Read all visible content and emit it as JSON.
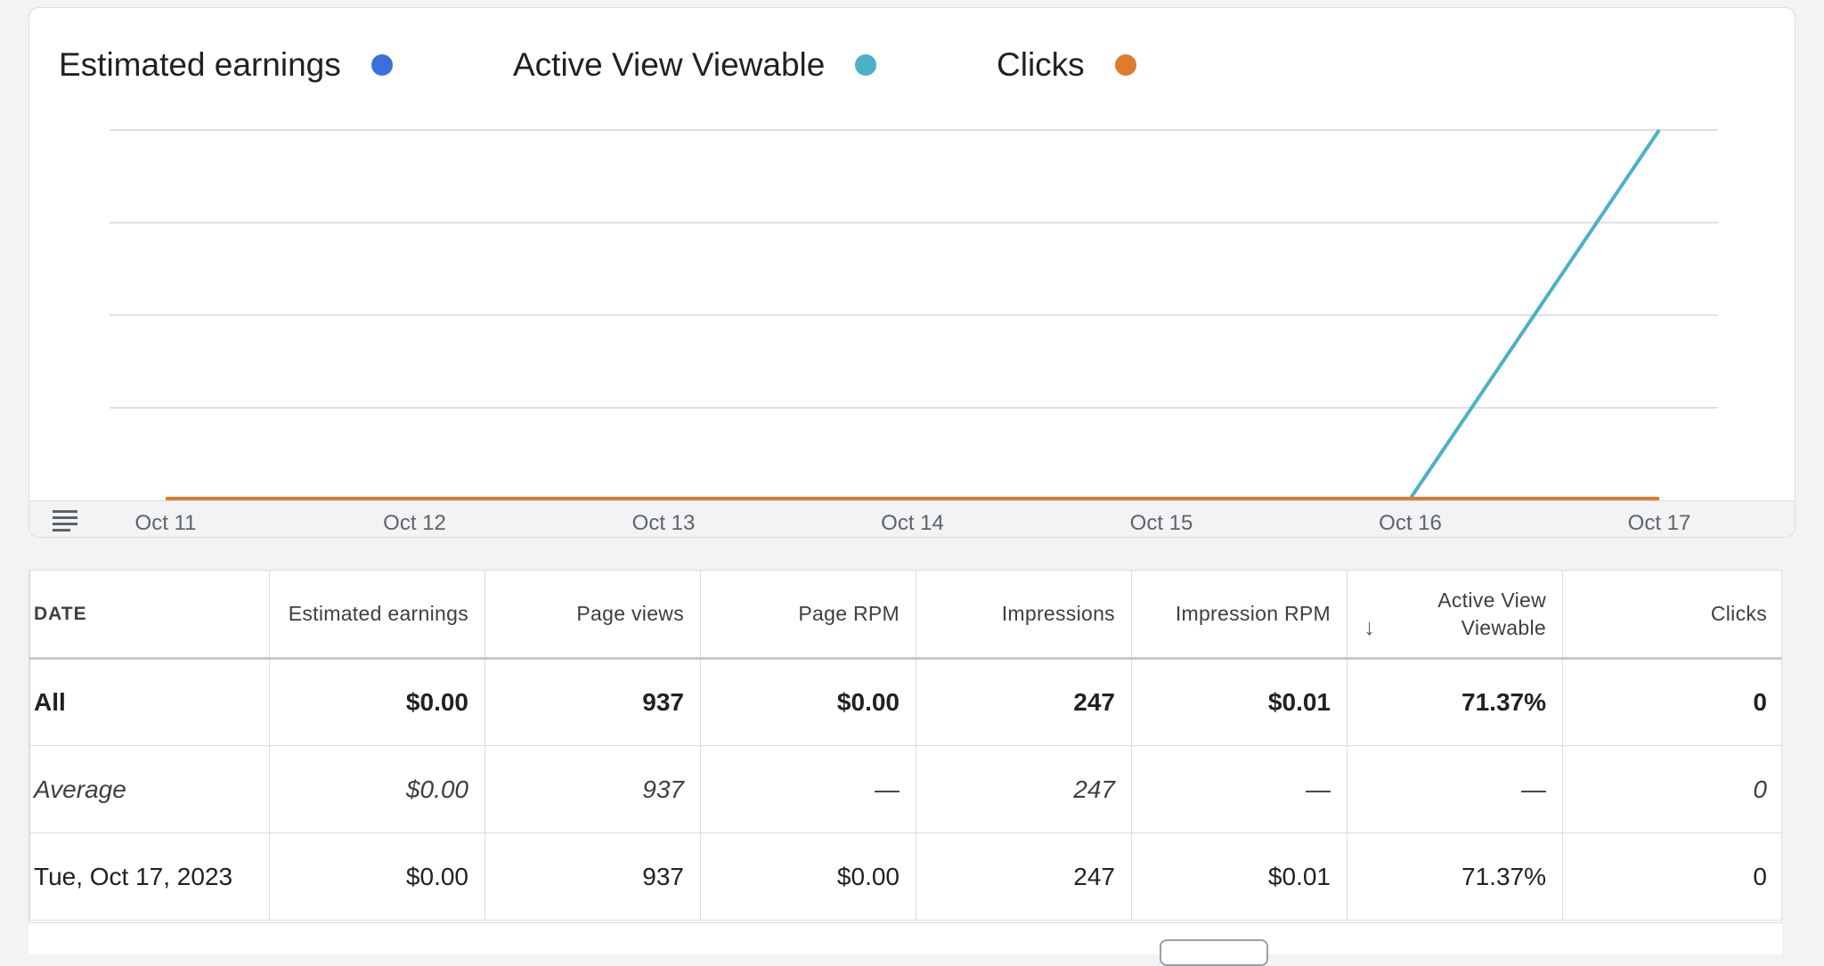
{
  "legend": [
    {
      "label": "Estimated earnings",
      "color": "#3c6fde"
    },
    {
      "label": "Active View Viewable",
      "color": "#4bb1c9"
    },
    {
      "label": "Clicks",
      "color": "#e07b2e"
    }
  ],
  "chart_data": {
    "type": "line",
    "x": [
      "Oct 11",
      "Oct 12",
      "Oct 13",
      "Oct 14",
      "Oct 15",
      "Oct 16",
      "Oct 17"
    ],
    "series": [
      {
        "name": "Estimated earnings",
        "color": "#3c6fde",
        "values": [
          0,
          0,
          0,
          0,
          0,
          0,
          0
        ]
      },
      {
        "name": "Active View Viewable",
        "color": "#4bb1c9",
        "values": [
          0,
          0,
          0,
          0,
          0,
          0,
          71.37
        ]
      },
      {
        "name": "Clicks",
        "color": "#e07b2e",
        "values": [
          0,
          0,
          0,
          0,
          0,
          0,
          0
        ]
      }
    ],
    "grid": true,
    "legend_position": "top-left"
  },
  "table": {
    "headers": [
      "DATE",
      "Estimated earnings",
      "Page views",
      "Page RPM",
      "Impressions",
      "Impression RPM",
      "Active View Viewable",
      "Clicks"
    ],
    "sort_icon": "arrow-down-icon",
    "sort_arrow": "↓",
    "rows": [
      {
        "kind": "all",
        "cells": [
          "All",
          "$0.00",
          "937",
          "$0.00",
          "247",
          "$0.01",
          "71.37%",
          "0"
        ]
      },
      {
        "kind": "avg",
        "cells": [
          "Average",
          "$0.00",
          "937",
          "—",
          "247",
          "—",
          "—",
          "0"
        ]
      },
      {
        "kind": "day",
        "cells": [
          "Tue, Oct 17, 2023",
          "$0.00",
          "937",
          "$0.00",
          "247",
          "$0.01",
          "71.37%",
          "0"
        ]
      }
    ]
  }
}
